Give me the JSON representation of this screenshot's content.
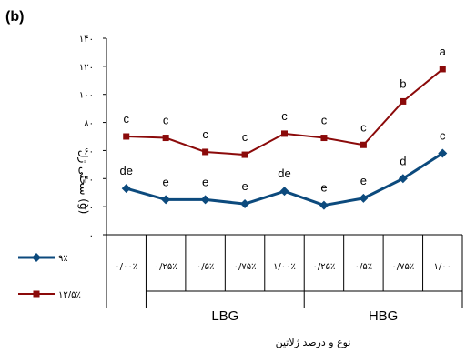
{
  "panel_label": "(b)",
  "chart_data": {
    "type": "line",
    "ylabel": "سختی ژل (g)",
    "xlabel": "نوع و درصد ژلاتین",
    "ylim": [
      0,
      140
    ],
    "yticks": [
      "۰",
      "۲۰",
      "۴۰",
      "۶۰",
      "۸۰",
      "۱۰۰",
      "۱۲۰",
      "۱۴۰"
    ],
    "ytick_values": [
      0,
      20,
      40,
      60,
      80,
      100,
      120,
      140
    ],
    "grid": false,
    "legend_position": "bottom-left",
    "categories": [
      "۰/۰۰٪",
      "۰/۲۵٪",
      "۰/۵٪",
      "۰/۷۵٪",
      "۱/۰۰٪",
      "۰/۲۵٪",
      "۰/۵٪",
      "۰/۷۵٪",
      "۱/۰۰"
    ],
    "groups": [
      {
        "label": "LBG",
        "span": [
          1,
          4
        ]
      },
      {
        "label": "HBG",
        "span": [
          5,
          8
        ]
      }
    ],
    "series": [
      {
        "name": "۹٪",
        "color": "#0c4a7d",
        "marker": "diamond",
        "values": [
          33,
          25,
          25,
          22,
          31,
          21,
          26,
          40,
          58
        ],
        "labels": [
          "de",
          "e",
          "e",
          "e",
          "de",
          "e",
          "e",
          "d",
          "c"
        ]
      },
      {
        "name": "۱۲/۵٪",
        "color": "#8b0a0a",
        "marker": "square",
        "values": [
          70,
          69,
          59,
          57,
          72,
          69,
          64,
          95,
          118
        ],
        "labels": [
          "c",
          "c",
          "c",
          "c",
          "c",
          "c",
          "c",
          "b",
          "a"
        ]
      }
    ]
  }
}
